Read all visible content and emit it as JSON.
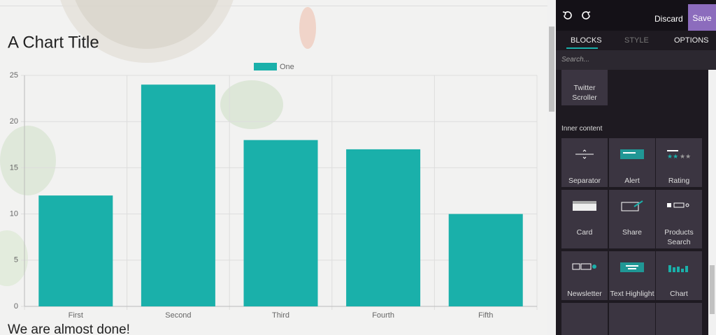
{
  "chart_data": {
    "type": "bar",
    "title": "A Chart Title",
    "categories": [
      "First",
      "Second",
      "Third",
      "Fourth",
      "Fifth"
    ],
    "series": [
      {
        "name": "One",
        "color": "#1ab0aa",
        "values": [
          12,
          24,
          18,
          17,
          10
        ]
      }
    ],
    "ylim": [
      0,
      25
    ],
    "yticks": [
      0,
      5,
      10,
      15,
      20,
      25
    ],
    "grid": true
  },
  "page": {
    "subtitle": "We are almost done!"
  },
  "editor": {
    "discard": "Discard",
    "save": "Save",
    "tabs": [
      "BLOCKS",
      "STYLE",
      "OPTIONS"
    ],
    "search": "Search...",
    "top_block": "Twitter Scroller",
    "section": "Inner content",
    "blocks": [
      "Separator",
      "Alert",
      "Rating",
      "Card",
      "Share",
      "Products Search",
      "Newsletter",
      "Text Highlight",
      "Chart"
    ]
  }
}
